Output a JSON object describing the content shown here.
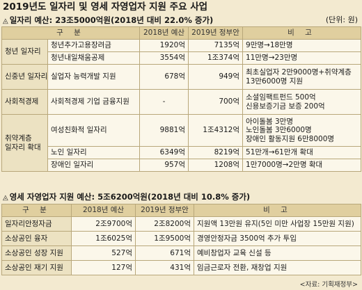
{
  "title": "2019년도 일자리 및 영세 자영업자 지원 주요 사업",
  "unit_note": "(단위: 원)",
  "source": "<자료: 기획재정부>",
  "jobs": {
    "subtitle": "일자리 예산: 23조5000억원(2018년 대비 22.0% 증가)",
    "headers": [
      "구   분",
      "2018년 예산",
      "2019년 정부안",
      "비   고"
    ],
    "rows": [
      {
        "category": "청년 일자리",
        "item": "청년추가고용장려금",
        "b2018": "1920억",
        "b2019": "7135억",
        "note": [
          "9만명→18만명"
        ]
      },
      {
        "category": "",
        "item": "청년내일채움공제",
        "b2018": "3554억",
        "b2019": "1조374억",
        "note": [
          "11만명→23만명"
        ]
      },
      {
        "category": "신중년 일자리",
        "item": "실업자 능력개발 지원",
        "b2018": "678억",
        "b2019": "949억",
        "note": [
          "최초실업자 2만9000명+취약계층",
          "13만6000명 지원"
        ]
      },
      {
        "category": "사회적경제",
        "item": "사회적경제 기업 금융지원",
        "b2018": "-",
        "b2019": "700억",
        "note": [
          "소셜임팩트펀드 500억",
          "신용보증기금 보증 200억"
        ]
      },
      {
        "category": "취약계층\n일자리 확대",
        "item": "여성친화적 일자리",
        "b2018": "9881억",
        "b2019": "1조4312억",
        "note": [
          "아이돌봄 3만명",
          "노인돌봄 3만6000명",
          "장애인 활동지원 6만8000명"
        ]
      },
      {
        "category": "",
        "item": "노인 일자리",
        "b2018": "6349억",
        "b2019": "8219억",
        "note": [
          "51만개→61만개 확대"
        ]
      },
      {
        "category": "",
        "item": "장애인 일자리",
        "b2018": "957억",
        "b2019": "1208억",
        "note": [
          "1만7000명→2만명 확대"
        ]
      }
    ]
  },
  "self_employed": {
    "subtitle": "영세 자영업자 지원 예산: 5조6200억원(2018년 대비 10.8% 증가)",
    "headers": [
      "구   분",
      "2018년 예산",
      "2019년 정부안",
      "비   고"
    ],
    "rows": [
      {
        "item": "일자리안정자금",
        "b2018": "2조9700억",
        "b2019": "2조8200억",
        "note": "지원액 13만원 유지(5인 미만 사업장 15만원 지원)"
      },
      {
        "item": "소상공인 융자",
        "b2018": "1조6025억",
        "b2019": "1조9500억",
        "note": "경영안정자금 3500억 추가 투입"
      },
      {
        "item": "소상공인 성장 지원",
        "b2018": "527억",
        "b2019": "671억",
        "note": "예비창업자 교육 신설 등"
      },
      {
        "item": "소상공인 재기 지원",
        "b2018": "127억",
        "b2019": "431억",
        "note": "임금근로자 전환, 재창업 지원"
      }
    ]
  }
}
